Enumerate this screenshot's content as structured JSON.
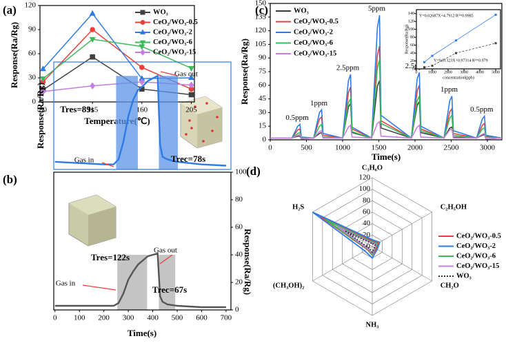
{
  "chart_data": [
    {
      "type": "line",
      "label": "(a)",
      "xlabel": "Temperature(℃)",
      "ylabel": "Response(Ra/Rg)",
      "categories": [
        "80",
        "115",
        "160",
        "205"
      ],
      "ylim": [
        0,
        120
      ],
      "yticks": [
        0,
        30,
        60,
        90,
        120
      ],
      "legend": "upper right",
      "series": [
        {
          "name": "WO₃",
          "color": "#404040",
          "marker": "square",
          "values": [
            15,
            56,
            16,
            9
          ]
        },
        {
          "name": "CeO₂/WO₃-0.5",
          "color": "#e8413c",
          "marker": "circle",
          "values": [
            25,
            90,
            43,
            16
          ]
        },
        {
          "name": "CeO₂/WO₃-2",
          "color": "#2f7be5",
          "marker": "triangle",
          "values": [
            41,
            110,
            29,
            30
          ]
        },
        {
          "name": "CeO₂/WO₃-6",
          "color": "#3cb95a",
          "marker": "triangle-down",
          "values": [
            29,
            78,
            69,
            42
          ]
        },
        {
          "name": "CeO₂/WO₃-15",
          "color": "#c77de0",
          "marker": "diamond",
          "values": [
            13,
            20,
            25,
            21
          ]
        }
      ]
    },
    {
      "type": "line",
      "label": "(b)",
      "ylabel": "Response(Ra/Rg)",
      "xlim": [
        -5,
        720
      ],
      "ylim": [
        0,
        85
      ],
      "x": [
        0,
        100,
        200,
        240,
        260,
        280,
        300,
        320,
        340,
        360,
        380,
        400,
        420,
        430,
        440,
        460,
        500,
        600,
        700
      ],
      "series": [
        {
          "color": "#2f7be5",
          "values": [
            6,
            5,
            4,
            4,
            8,
            22,
            42,
            55,
            63,
            66,
            70,
            72,
            74,
            20,
            10,
            8,
            6,
            4,
            3
          ]
        }
      ],
      "regions": [
        [
          250,
          339,
          74
        ],
        [
          425,
          503,
          74
        ]
      ],
      "region_color": "#5b93e6",
      "annotations": [
        "Tres=89s",
        "Trec=78s",
        "Gas in",
        "Gas out"
      ]
    },
    {
      "type": "line",
      "xlabel": "Time(s)",
      "ylabel": "Response(Ra/Rg)",
      "y_axis": "right",
      "xlim": [
        -5,
        720
      ],
      "ylim": [
        0,
        100
      ],
      "xticks": [
        0,
        100,
        200,
        300,
        400,
        500,
        600,
        700
      ],
      "yticks": [
        0,
        20,
        40,
        60,
        80,
        100
      ],
      "x": [
        0,
        100,
        200,
        240,
        260,
        280,
        300,
        320,
        340,
        360,
        380,
        400,
        420,
        430,
        440,
        460,
        500,
        600,
        700
      ],
      "series": [
        {
          "color": "#555555",
          "values": [
            3,
            3,
            3,
            3,
            5,
            12,
            22,
            28,
            33,
            36,
            39,
            40,
            41,
            10,
            6,
            4,
            3,
            2,
            2
          ]
        }
      ],
      "regions": [
        [
          255,
          377,
          40
        ],
        [
          425,
          492,
          40
        ]
      ],
      "region_color": "#b0b0b0",
      "annotations": [
        "Tres=122s",
        "Trec=67s",
        "Gas in",
        "Gas out"
      ]
    },
    {
      "type": "line",
      "label": "(c)",
      "xlabel": "Time(s)",
      "ylabel": "Response(Ra/Rg)",
      "legend": "upper left",
      "xlim": [
        0,
        3200
      ],
      "ylim": [
        0,
        150
      ],
      "xticks": [
        0,
        500,
        1000,
        1500,
        2000,
        2500,
        3000
      ],
      "yticks": [
        0,
        15,
        30,
        45,
        60,
        75,
        90,
        105,
        120,
        135,
        150
      ],
      "x": [
        0,
        300,
        380,
        410,
        430,
        600,
        680,
        710,
        730,
        1000,
        1080,
        1110,
        1130,
        1400,
        1480,
        1510,
        1530,
        1950,
        2030,
        2060,
        2080,
        2400,
        2480,
        2510,
        2530,
        2850,
        2930,
        2960,
        2980,
        3200
      ],
      "series": [
        {
          "name": "WO₃",
          "color": "#404040",
          "values": [
            2,
            2,
            4,
            4,
            1,
            2,
            7,
            8,
            2,
            2,
            36,
            40,
            8,
            2,
            59,
            65,
            13,
            2,
            38,
            42,
            8,
            2,
            13,
            14,
            3,
            2,
            5,
            6,
            1,
            2
          ]
        },
        {
          "name": "CeO₂/WO₃-0.5",
          "color": "#e8413c",
          "values": [
            2,
            2,
            11,
            12,
            2,
            2,
            23,
            25,
            5,
            2,
            52,
            58,
            12,
            2,
            93,
            103,
            21,
            2,
            54,
            60,
            12,
            2,
            31,
            34,
            7,
            2,
            16,
            18,
            4,
            2
          ]
        },
        {
          "name": "CeO₂/WO₃-2",
          "color": "#2f7be5",
          "values": [
            2,
            2,
            15,
            17,
            3,
            2,
            30,
            33,
            7,
            2,
            65,
            72,
            14,
            2,
            123,
            137,
            27,
            2,
            67,
            74,
            15,
            2,
            43,
            48,
            10,
            2,
            23,
            26,
            5,
            2
          ]
        },
        {
          "name": "CeO₂/WO₃-6",
          "color": "#3cb95a",
          "values": [
            2,
            2,
            7,
            8,
            2,
            2,
            15,
            17,
            3,
            2,
            41,
            45,
            9,
            2,
            79,
            88,
            18,
            2,
            43,
            48,
            10,
            2,
            24,
            27,
            5,
            2,
            12,
            13,
            3,
            2
          ]
        },
        {
          "name": "CeO₂/WO₃-15",
          "color": "#c77de0",
          "values": [
            2,
            2,
            5,
            6,
            1,
            2,
            9,
            10,
            2,
            2,
            14,
            16,
            3,
            2,
            18,
            20,
            4,
            2,
            14,
            16,
            3,
            2,
            11,
            12,
            2,
            2,
            6,
            7,
            1,
            2
          ]
        }
      ],
      "annotations": [
        "0.5ppm",
        "1ppm",
        "2.5ppm",
        "5ppm",
        "2.5ppm",
        "1ppm",
        "0.5ppm"
      ]
    },
    {
      "type": "scatter",
      "xlabel": "concentration(ppb)",
      "ylabel": "Response(Ra/Rg)",
      "xlim": [
        0,
        5300
      ],
      "ylim": [
        0,
        150
      ],
      "xticks": [
        0,
        1000,
        2000,
        3000,
        4000,
        5000
      ],
      "yticks": [
        0,
        20,
        40,
        60,
        80,
        100,
        120,
        140
      ],
      "x": [
        500,
        1000,
        2500,
        5000
      ],
      "series": [
        {
          "color": "#2f7be5",
          "values": [
            17,
            33,
            72,
            137
          ]
        },
        {
          "color": "#404040",
          "values": [
            4,
            8,
            40,
            65
          ]
        }
      ],
      "annotations": [
        "Y=0.02687X+4.7912  R²=0.9985",
        "Y=0.01323X+0.97314  R²=0.979"
      ]
    },
    {
      "type": "radar",
      "label": "(d)",
      "axes": [
        "C₃H₆O",
        "C₂H₅OH",
        "CH₂O",
        "NH₃",
        "(CH₃OH)₂",
        "H₂S"
      ],
      "rlim": [
        0,
        120
      ],
      "rticks": [
        0,
        20,
        40,
        60,
        80,
        100,
        120
      ],
      "legend": "right",
      "series": [
        {
          "name": "CeO₂/WO₃-0.5",
          "color": "#e8413c",
          "linestyle": "solid",
          "values": [
            10,
            12,
            8,
            15,
            10,
            105
          ]
        },
        {
          "name": "CeO₂/WO₃-2",
          "color": "#2f7be5",
          "linestyle": "solid",
          "values": [
            12,
            15,
            10,
            20,
            15,
            120
          ]
        },
        {
          "name": "CeO₂/WO₃-6",
          "color": "#3cb95a",
          "linestyle": "solid",
          "values": [
            8,
            10,
            6,
            14,
            9,
            95
          ]
        },
        {
          "name": "CeO₂/WO₃-15",
          "color": "#c77de0",
          "linestyle": "solid",
          "values": [
            6,
            8,
            5,
            12,
            8,
            70
          ]
        },
        {
          "name": "WO₃",
          "color": "#333333",
          "linestyle": "dotted",
          "values": [
            5,
            6,
            4,
            10,
            6,
            55
          ]
        }
      ]
    }
  ]
}
